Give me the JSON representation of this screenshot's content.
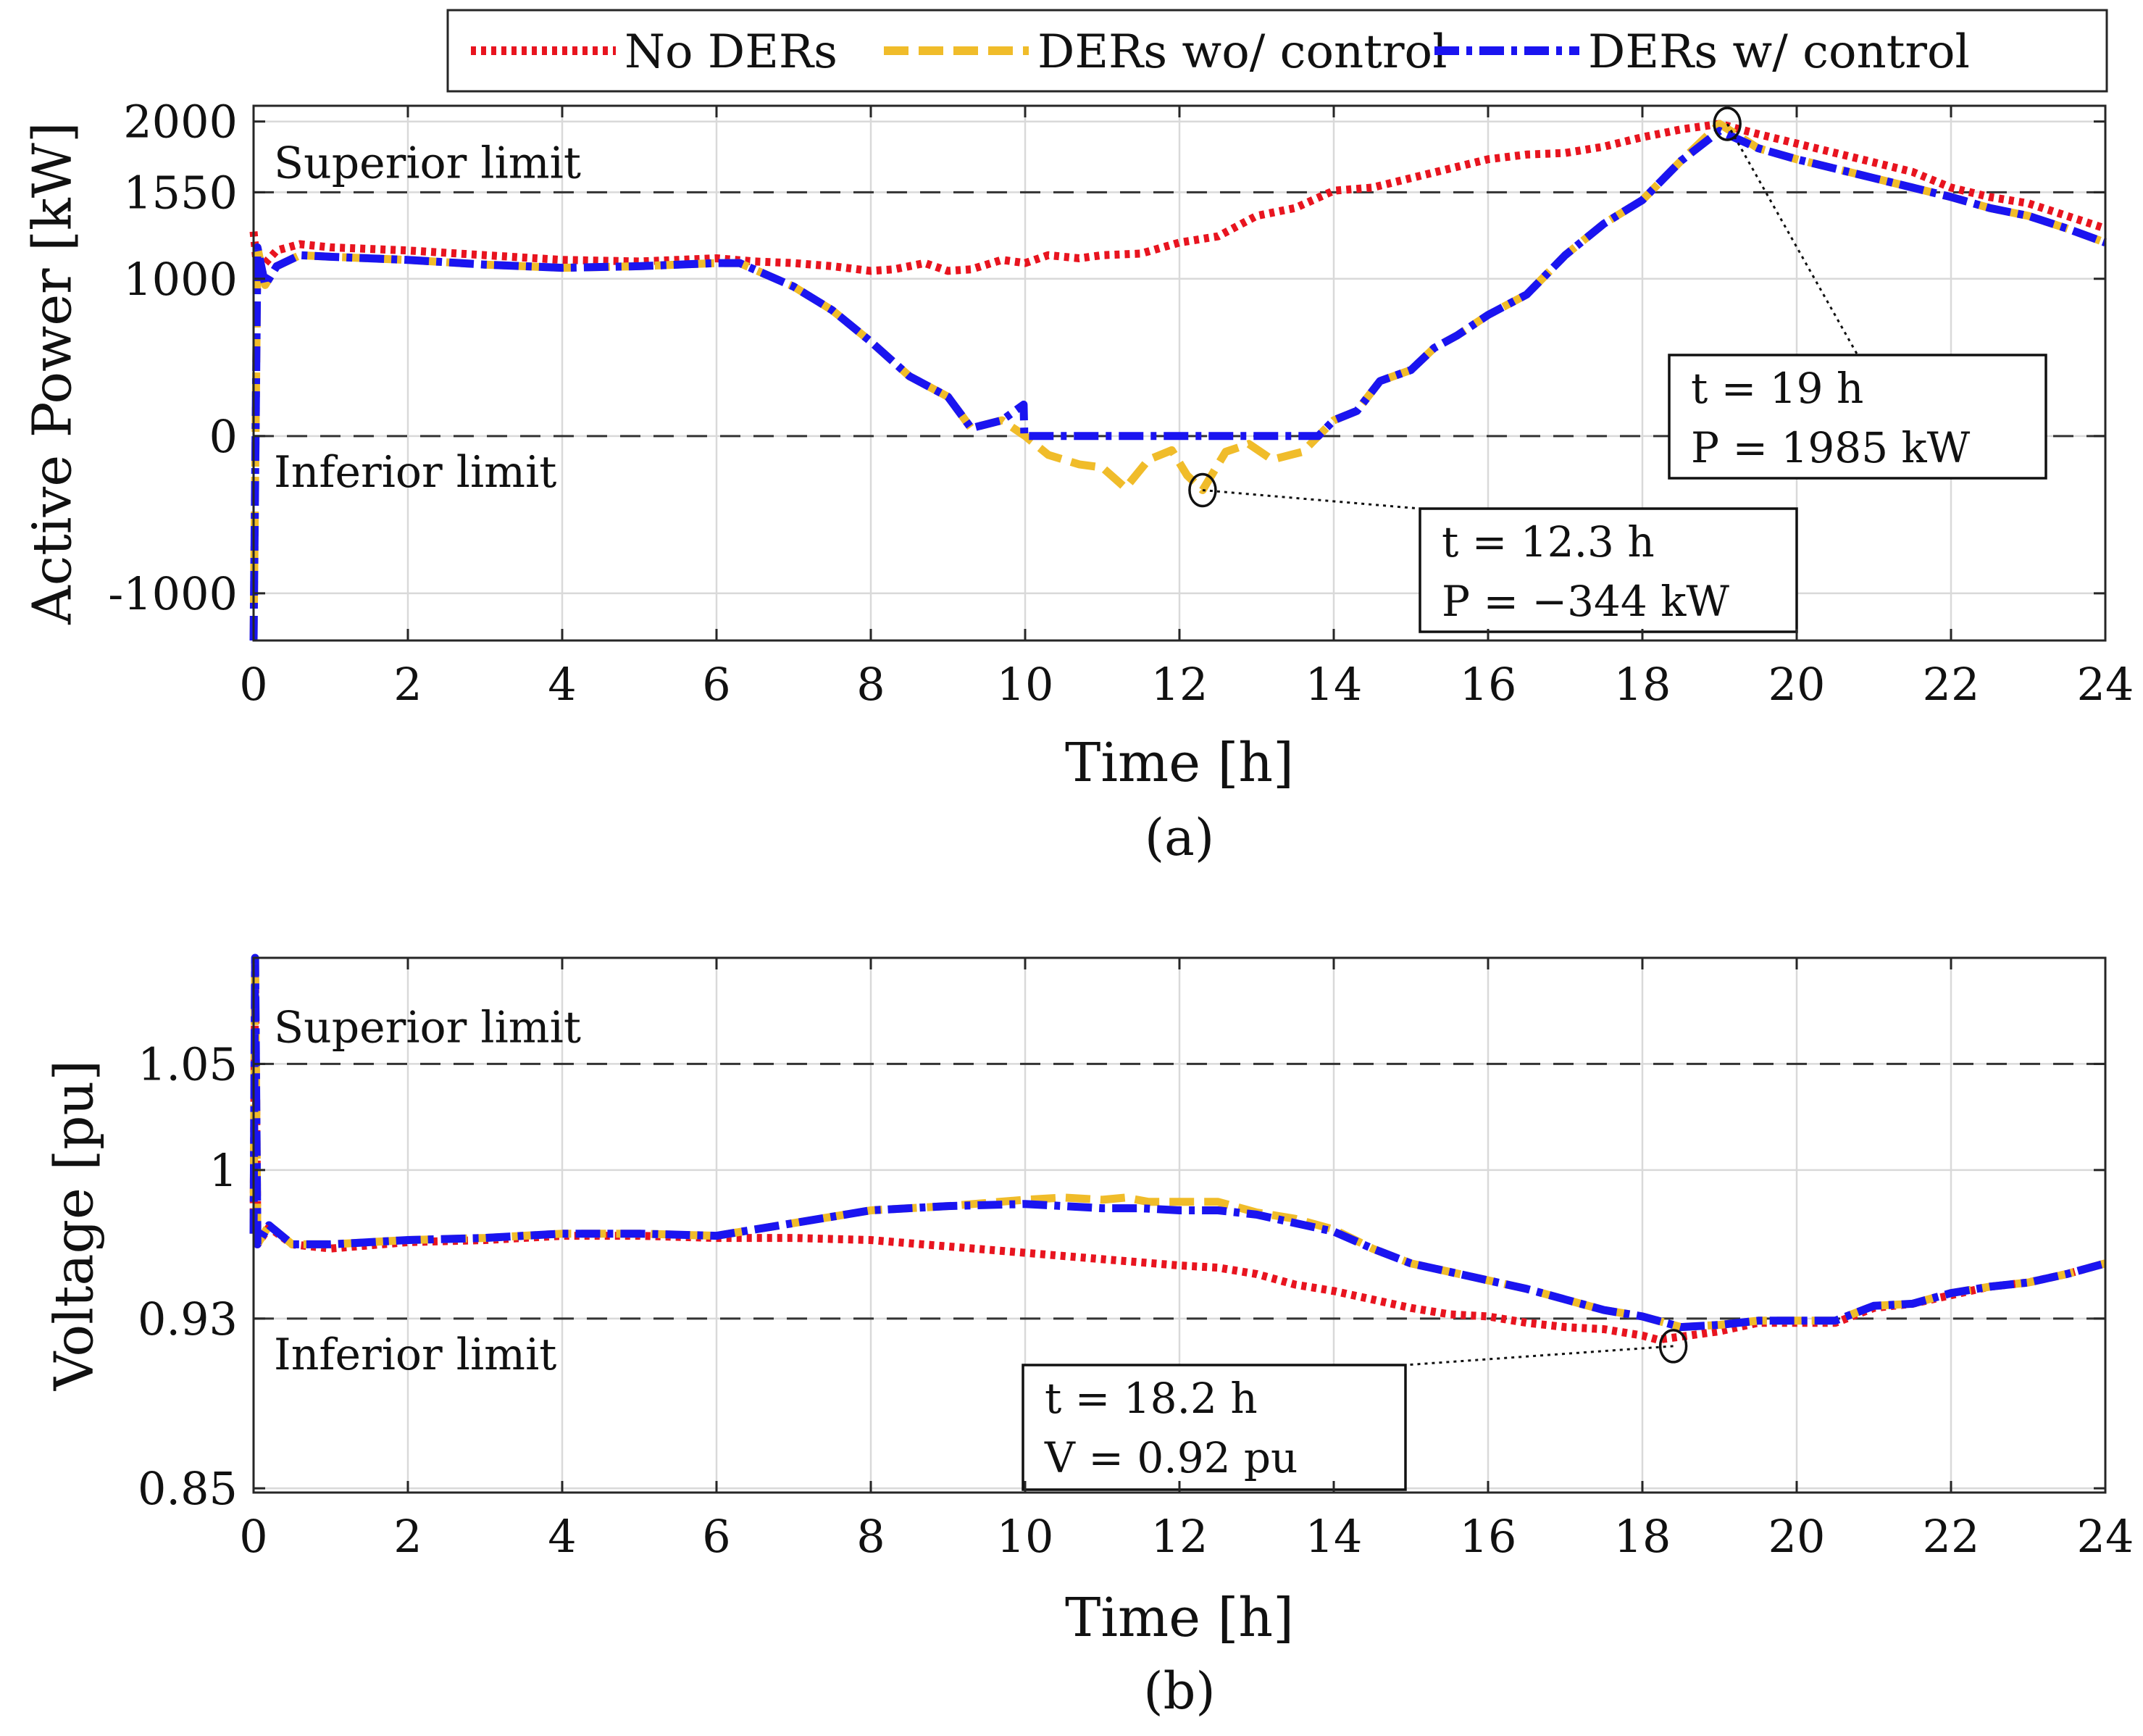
{
  "legend": [
    {
      "label": "No DERs",
      "color": "#e8141f",
      "style": "dotted"
    },
    {
      "label": "DERs wo/ control",
      "color": "#f0bc2a",
      "style": "dashed"
    },
    {
      "label": "DERs w/ control",
      "color": "#1a14f0",
      "style": "dashdot"
    }
  ],
  "chart_data": [
    {
      "type": "line",
      "subplot_label": "(a)",
      "xlabel": "Time [h]",
      "ylabel": "Active Power [kW]",
      "xlim": [
        0,
        24
      ],
      "ylim": [
        -1300,
        2100
      ],
      "xticks": [
        0,
        2,
        4,
        6,
        8,
        10,
        12,
        14,
        16,
        18,
        20,
        22,
        24
      ],
      "yticks": [
        -1000,
        0,
        1000,
        1550,
        2000
      ],
      "ytick_labels": [
        "-1000",
        "0",
        "1000",
        "1550",
        "2000"
      ],
      "reference_lines": [
        {
          "value": 1550,
          "label": "Superior limit"
        },
        {
          "value": 0,
          "label": "Inferior limit"
        }
      ],
      "series": [
        {
          "name": "No DERs",
          "x": [
            0,
            0.05,
            0.15,
            0.3,
            0.6,
            1,
            2,
            3,
            4,
            5,
            6,
            6.5,
            7,
            7.5,
            8,
            8.3,
            8.7,
            9,
            9.3,
            9.7,
            10,
            10.3,
            10.7,
            11,
            11.5,
            12,
            12.5,
            13,
            13.5,
            14,
            14.5,
            15,
            15.5,
            16,
            16.5,
            17,
            17.5,
            18,
            18.5,
            19,
            19.5,
            20,
            20.5,
            21,
            21.5,
            22,
            22.5,
            23,
            23.5,
            24
          ],
          "values": [
            1300,
            1050,
            1100,
            1180,
            1220,
            1200,
            1180,
            1150,
            1120,
            1110,
            1130,
            1110,
            1100,
            1080,
            1050,
            1060,
            1100,
            1050,
            1060,
            1120,
            1100,
            1150,
            1130,
            1150,
            1160,
            1230,
            1270,
            1400,
            1450,
            1560,
            1580,
            1640,
            1700,
            1760,
            1790,
            1800,
            1840,
            1900,
            1950,
            1985,
            1920,
            1860,
            1800,
            1740,
            1680,
            1580,
            1520,
            1480,
            1400,
            1320
          ]
        },
        {
          "name": "DERs wo/ control",
          "x": [
            0,
            0.05,
            0.15,
            0.3,
            0.6,
            1,
            2,
            3,
            4,
            5,
            6,
            6.3,
            7,
            7.5,
            8,
            8.5,
            9,
            9.3,
            9.7,
            10,
            10.3,
            10.7,
            11,
            11.3,
            11.6,
            11.9,
            12.1,
            12.3,
            12.6,
            12.9,
            13.2,
            13.6,
            14,
            14.3,
            14.6,
            15,
            15.3,
            15.6,
            16,
            16.5,
            17,
            17.5,
            18,
            18.5,
            19,
            19.5,
            20,
            20.5,
            21,
            21.5,
            22,
            22.5,
            23,
            23.5,
            24
          ],
          "values": [
            -1300,
            1200,
            960,
            1080,
            1150,
            1140,
            1120,
            1090,
            1070,
            1080,
            1100,
            1100,
            950,
            800,
            600,
            380,
            250,
            50,
            100,
            0,
            -120,
            -180,
            -200,
            -330,
            -150,
            -90,
            -250,
            -344,
            -100,
            -50,
            -150,
            -100,
            100,
            160,
            350,
            420,
            560,
            640,
            770,
            900,
            1150,
            1350,
            1500,
            1750,
            1985,
            1830,
            1760,
            1700,
            1640,
            1580,
            1520,
            1450,
            1400,
            1320,
            1230
          ]
        },
        {
          "name": "DERs w/ control",
          "x": [
            0,
            0.05,
            0.15,
            0.3,
            0.6,
            1,
            2,
            3,
            4,
            5,
            6,
            6.3,
            7,
            7.5,
            8,
            8.5,
            9,
            9.3,
            9.7,
            9.98,
            9.99,
            10,
            10.5,
            11,
            11.5,
            12,
            12.5,
            13,
            13.5,
            13.8,
            14,
            14.3,
            14.6,
            15,
            15.3,
            15.6,
            16,
            16.5,
            17,
            17.5,
            18,
            18.5,
            19,
            19.5,
            20,
            20.5,
            21,
            21.5,
            22,
            22.5,
            23,
            23.5,
            24
          ],
          "values": [
            -1300,
            1200,
            960,
            1080,
            1150,
            1140,
            1120,
            1090,
            1070,
            1080,
            1100,
            1100,
            950,
            800,
            600,
            380,
            250,
            50,
            100,
            200,
            0,
            0,
            0,
            0,
            0,
            0,
            0,
            0,
            0,
            0,
            100,
            160,
            350,
            420,
            560,
            640,
            770,
            900,
            1150,
            1350,
            1500,
            1750,
            1940,
            1830,
            1760,
            1700,
            1640,
            1580,
            1520,
            1450,
            1400,
            1320,
            1230
          ]
        }
      ],
      "annotations": [
        {
          "target_x": 19.1,
          "target_y": 1985,
          "lines": [
            "t = 19 h",
            "P = 1985 kW"
          ]
        },
        {
          "target_x": 12.3,
          "target_y": -344,
          "lines": [
            "t = 12.3 h",
            "P = −344 kW"
          ]
        }
      ]
    },
    {
      "type": "line",
      "subplot_label": "(b)",
      "xlabel": "Time [h]",
      "ylabel": "Voltage [pu]",
      "xlim": [
        0,
        24
      ],
      "ylim": [
        0.848,
        1.1
      ],
      "xticks": [
        0,
        2,
        4,
        6,
        8,
        10,
        12,
        14,
        16,
        18,
        20,
        22,
        24
      ],
      "yticks": [
        0.85,
        0.93,
        1,
        1.05
      ],
      "ytick_labels": [
        "0.85",
        "0.93",
        "1",
        "1.05"
      ],
      "reference_lines": [
        {
          "value": 1.05,
          "label": "Superior limit"
        },
        {
          "value": 0.93,
          "label": "Inferior limit"
        }
      ],
      "series": [
        {
          "name": "No DERs",
          "x": [
            0,
            0.02,
            0.05,
            0.2,
            0.5,
            1,
            2,
            3,
            4,
            5,
            6,
            7,
            8,
            9,
            10,
            11,
            12,
            12.5,
            13,
            13.5,
            14,
            14.5,
            15,
            15.5,
            16,
            16.5,
            17,
            17.5,
            18,
            18.2,
            18.6,
            19,
            19.5,
            20,
            20.5,
            21,
            21.5,
            22,
            22.5,
            23,
            23.5,
            24
          ],
          "values": [
            0.97,
            1.09,
            0.965,
            0.973,
            0.965,
            0.963,
            0.966,
            0.967,
            0.969,
            0.969,
            0.968,
            0.968,
            0.967,
            0.964,
            0.961,
            0.958,
            0.955,
            0.954,
            0.951,
            0.946,
            0.943,
            0.939,
            0.935,
            0.932,
            0.931,
            0.928,
            0.926,
            0.925,
            0.922,
            0.92,
            0.922,
            0.924,
            0.928,
            0.928,
            0.928,
            0.935,
            0.937,
            0.941,
            0.945,
            0.947,
            0.951,
            0.956
          ]
        },
        {
          "name": "DERs wo/ control",
          "x": [
            0,
            0.02,
            0.05,
            0.2,
            0.5,
            1,
            2,
            3,
            4,
            5,
            6,
            7,
            8,
            9,
            10,
            10.5,
            11,
            11.3,
            11.6,
            12,
            12.5,
            13,
            13.5,
            14,
            14.5,
            15,
            15.5,
            16,
            16.5,
            17,
            17.5,
            18,
            18.5,
            19,
            19.5,
            20,
            20.5,
            21,
            21.5,
            22,
            22.5,
            23,
            23.5,
            24
          ],
          "values": [
            0.97,
            1.1,
            0.965,
            0.974,
            0.965,
            0.965,
            0.967,
            0.968,
            0.97,
            0.97,
            0.969,
            0.975,
            0.981,
            0.983,
            0.986,
            0.987,
            0.986,
            0.987,
            0.985,
            0.985,
            0.985,
            0.98,
            0.977,
            0.972,
            0.963,
            0.956,
            0.952,
            0.948,
            0.944,
            0.939,
            0.934,
            0.931,
            0.926,
            0.927,
            0.929,
            0.929,
            0.929,
            0.936,
            0.937,
            0.942,
            0.945,
            0.947,
            0.951,
            0.956
          ]
        },
        {
          "name": "DERs w/ control",
          "x": [
            0,
            0.02,
            0.05,
            0.2,
            0.5,
            1,
            2,
            3,
            4,
            5,
            6,
            7,
            8,
            9,
            10,
            10.5,
            11,
            11.5,
            12,
            12.5,
            13,
            13.5,
            14,
            14.5,
            15,
            15.5,
            16,
            16.5,
            17,
            17.5,
            18,
            18.5,
            19,
            19.5,
            20,
            20.5,
            21,
            21.5,
            22,
            22.5,
            23,
            23.5,
            24
          ],
          "values": [
            0.97,
            1.1,
            0.965,
            0.974,
            0.965,
            0.965,
            0.967,
            0.968,
            0.97,
            0.97,
            0.969,
            0.975,
            0.981,
            0.983,
            0.984,
            0.983,
            0.982,
            0.982,
            0.981,
            0.981,
            0.979,
            0.975,
            0.971,
            0.963,
            0.956,
            0.952,
            0.948,
            0.944,
            0.939,
            0.934,
            0.931,
            0.926,
            0.927,
            0.929,
            0.929,
            0.929,
            0.936,
            0.937,
            0.942,
            0.945,
            0.947,
            0.951,
            0.956
          ]
        }
      ],
      "annotations": [
        {
          "target_x": 18.4,
          "target_y": 0.917,
          "lines": [
            "t = 18.2 h",
            "V = 0.92 pu"
          ]
        }
      ]
    }
  ]
}
